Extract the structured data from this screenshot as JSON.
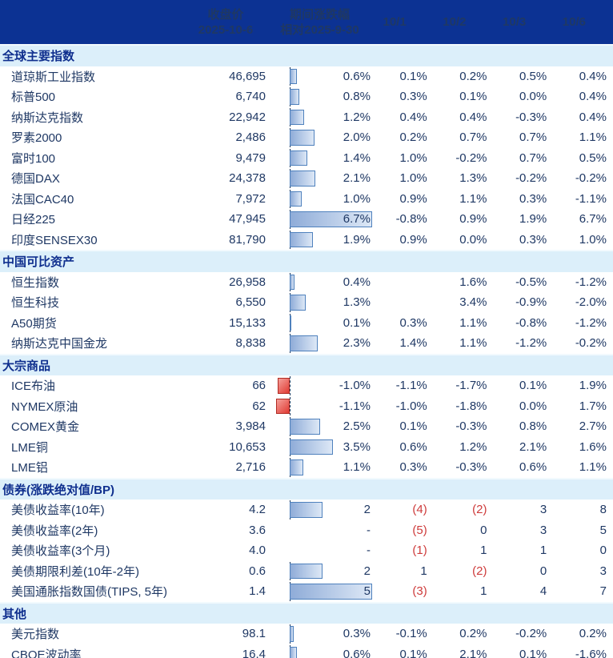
{
  "columns": {
    "close_line1": "收盘价",
    "close_line2": "2025-10-6",
    "change_line1": "期间涨跌幅",
    "change_line2": "相对2025-9-30",
    "daily": [
      "10/1",
      "10/2",
      "10/3",
      "10/6"
    ]
  },
  "colors": {
    "header_bg": "#0C3293",
    "section_bg": "#DCEFFA",
    "text_navy": "#1F3864",
    "negative_red": "#CE3B3B",
    "bar_positive_border": "#4F81BD",
    "bar_negative_border": "#B02A22"
  },
  "sections": [
    {
      "title": "全球主要指数",
      "bar_max": 6.7,
      "rows": [
        {
          "name": "道琼斯工业指数",
          "close": "46,695",
          "change": "0.6%",
          "bar": 0.6,
          "daily": [
            "0.1%",
            "0.2%",
            "0.5%",
            "0.4%"
          ]
        },
        {
          "name": "标普500",
          "close": "6,740",
          "change": "0.8%",
          "bar": 0.8,
          "daily": [
            "0.3%",
            "0.1%",
            "0.0%",
            "0.4%"
          ]
        },
        {
          "name": "纳斯达克指数",
          "close": "22,942",
          "change": "1.2%",
          "bar": 1.2,
          "daily": [
            "0.4%",
            "0.4%",
            "-0.3%",
            "0.4%"
          ]
        },
        {
          "name": "罗素2000",
          "close": "2,486",
          "change": "2.0%",
          "bar": 2.0,
          "daily": [
            "0.2%",
            "0.7%",
            "0.7%",
            "1.1%"
          ]
        },
        {
          "name": "富时100",
          "close": "9,479",
          "change": "1.4%",
          "bar": 1.4,
          "daily": [
            "1.0%",
            "-0.2%",
            "0.7%",
            "0.5%"
          ]
        },
        {
          "name": "德国DAX",
          "close": "24,378",
          "change": "2.1%",
          "bar": 2.1,
          "daily": [
            "1.0%",
            "1.3%",
            "-0.2%",
            "-0.2%"
          ]
        },
        {
          "name": "法国CAC40",
          "close": "7,972",
          "change": "1.0%",
          "bar": 1.0,
          "daily": [
            "0.9%",
            "1.1%",
            "0.3%",
            "-1.1%"
          ]
        },
        {
          "name": "日经225",
          "close": "47,945",
          "change": "6.7%",
          "bar": 6.7,
          "daily": [
            "-0.8%",
            "0.9%",
            "1.9%",
            "6.7%"
          ]
        },
        {
          "name": "印度SENSEX30",
          "close": "81,790",
          "change": "1.9%",
          "bar": 1.9,
          "daily": [
            "0.9%",
            "0.0%",
            "0.3%",
            "1.0%"
          ]
        }
      ]
    },
    {
      "title": "中国可比资产",
      "bar_max": 6.7,
      "rows": [
        {
          "name": "恒生指数",
          "close": "26,958",
          "change": "0.4%",
          "bar": 0.4,
          "daily": [
            "",
            "1.6%",
            "-0.5%",
            "-1.2%"
          ]
        },
        {
          "name": "恒生科技",
          "close": "6,550",
          "change": "1.3%",
          "bar": 1.3,
          "daily": [
            "",
            "3.4%",
            "-0.9%",
            "-2.0%"
          ]
        },
        {
          "name": "A50期货",
          "close": "15,133",
          "change": "0.1%",
          "bar": 0.1,
          "daily": [
            "0.3%",
            "1.1%",
            "-0.8%",
            "-1.2%"
          ]
        },
        {
          "name": "纳斯达克中国金龙",
          "close": "8,838",
          "change": "2.3%",
          "bar": 2.3,
          "daily": [
            "1.4%",
            "1.1%",
            "-1.2%",
            "-0.2%"
          ]
        }
      ]
    },
    {
      "title": "大宗商品",
      "bar_max": 6.7,
      "rows": [
        {
          "name": "ICE布油",
          "close": "66",
          "change": "-1.0%",
          "bar": -1.0,
          "daily": [
            "-1.1%",
            "-1.7%",
            "0.1%",
            "1.9%"
          ]
        },
        {
          "name": "NYMEX原油",
          "close": "62",
          "change": "-1.1%",
          "bar": -1.1,
          "daily": [
            "-1.0%",
            "-1.8%",
            "0.0%",
            "1.7%"
          ]
        },
        {
          "name": "COMEX黄金",
          "close": "3,984",
          "change": "2.5%",
          "bar": 2.5,
          "daily": [
            "0.1%",
            "-0.3%",
            "0.8%",
            "2.7%"
          ]
        },
        {
          "name": "LME铜",
          "close": "10,653",
          "change": "3.5%",
          "bar": 3.5,
          "daily": [
            "0.6%",
            "1.2%",
            "2.1%",
            "1.6%"
          ]
        },
        {
          "name": "LME铝",
          "close": "2,716",
          "change": "1.1%",
          "bar": 1.1,
          "daily": [
            "0.3%",
            "-0.3%",
            "0.6%",
            "1.1%"
          ]
        }
      ]
    },
    {
      "title": "债券(涨跌绝对值/BP)",
      "bar_max": 5,
      "rows": [
        {
          "name": "美债收益率(10年)",
          "close": "4.2",
          "change": "2",
          "bar": 2,
          "daily": [
            "(4)",
            "(2)",
            "3",
            "8"
          ]
        },
        {
          "name": "美债收益率(2年)",
          "close": "3.6",
          "change": "-",
          "bar": null,
          "daily": [
            "(5)",
            "0",
            "3",
            "5"
          ]
        },
        {
          "name": "美债收益率(3个月)",
          "close": "4.0",
          "change": "-",
          "bar": null,
          "daily": [
            "(1)",
            "1",
            "1",
            "0"
          ]
        },
        {
          "name": "美债期限利差(10年-2年)",
          "close": "0.6",
          "change": "2",
          "bar": 2,
          "daily": [
            "1",
            "(2)",
            "0",
            "3"
          ]
        },
        {
          "name": "美国通胀指数国债(TIPS, 5年)",
          "close": "1.4",
          "change": "5",
          "bar": 5,
          "daily": [
            "(3)",
            "1",
            "4",
            "7"
          ]
        }
      ]
    },
    {
      "title": "其他",
      "bar_max": 6.7,
      "rows": [
        {
          "name": "美元指数",
          "close": "98.1",
          "change": "0.3%",
          "bar": 0.3,
          "daily": [
            "-0.1%",
            "0.2%",
            "-0.2%",
            "0.2%"
          ]
        },
        {
          "name": "CBOE波动率",
          "close": "16.4",
          "change": "0.6%",
          "bar": 0.6,
          "daily": [
            "0.1%",
            "2.1%",
            "0.1%",
            "-1.6%"
          ]
        }
      ]
    }
  ]
}
